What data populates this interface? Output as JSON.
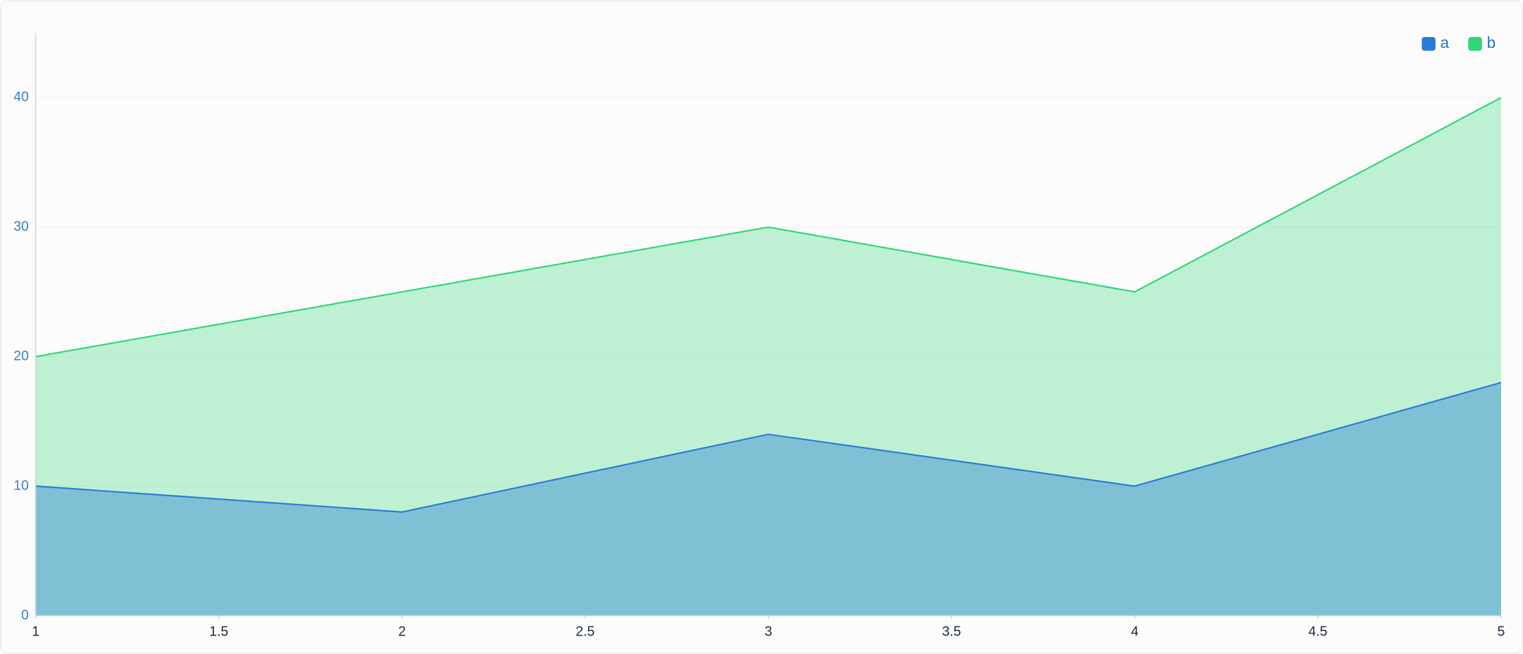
{
  "chart_data": {
    "type": "area",
    "x": [
      1,
      2,
      3,
      4,
      5
    ],
    "series": [
      {
        "name": "a",
        "color": "#2b7bd6",
        "values": [
          10,
          8,
          14,
          10,
          18
        ]
      },
      {
        "name": "b",
        "color": "#2fd674",
        "values": [
          20,
          25,
          30,
          25,
          40
        ]
      }
    ],
    "xlim": [
      1,
      5
    ],
    "xticks": [
      1,
      1.5,
      2,
      2.5,
      3,
      3.5,
      4,
      4.5,
      5
    ],
    "ylim": [
      0,
      45
    ],
    "yticks": [
      0,
      10,
      20,
      30,
      40
    ],
    "grid": true,
    "legend": "top-right"
  }
}
